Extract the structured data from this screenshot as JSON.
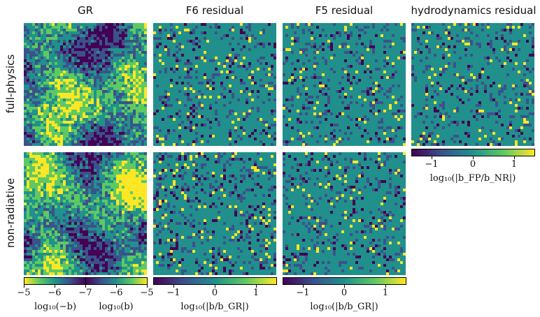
{
  "columns": [
    "GR",
    "F6 residual",
    "F5 residual",
    "hydrodynamics residual"
  ],
  "rows": [
    "full-physics",
    "non-radiative"
  ],
  "colorbars": {
    "gr": {
      "left_ticks": [
        "−5",
        "−6",
        "−7"
      ],
      "right_ticks": [
        "−6",
        "−5"
      ],
      "left_label": "log₁₀(−b)",
      "right_label": "log₁₀(b)"
    },
    "f6": {
      "ticks": [
        "−1",
        "0",
        "1"
      ],
      "label": "log₁₀(|b/b_GR|)"
    },
    "f5": {
      "ticks": [
        "−1",
        "0",
        "1"
      ],
      "label": "log₁₀(|b/b_GR|)"
    },
    "hydro": {
      "ticks": [
        "−1",
        "0",
        "1"
      ],
      "label": "log₁₀(|b_FP/b_NR|)"
    }
  },
  "colors": {
    "v0": "#440154",
    "v1": "#3b528b",
    "v2": "#21918c",
    "v3": "#5ec962",
    "v4": "#fde725"
  }
}
